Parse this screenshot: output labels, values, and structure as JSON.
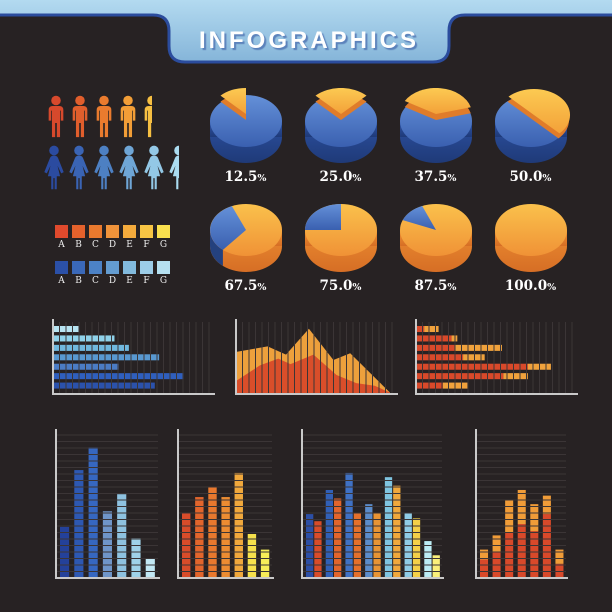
{
  "header": {
    "title": "INFOGRAPHICS",
    "banner_color": "#9ccbe8",
    "banner_light": "#b3daf0",
    "banner_dark": "#7fb0d6",
    "border_color": "#2b4c9d",
    "title_color": "#ffffff"
  },
  "background": "#272223",
  "axis_color": "#c9c9c9",
  "grid_color": "#3b3536",
  "chart_data": [
    {
      "id": "pictogram-male",
      "type": "pictogram",
      "icon": "man",
      "unit_count": 4.5,
      "colors": [
        "#d7492c",
        "#e15e2c",
        "#ea7b2e",
        "#f29e37",
        "#f6bf42"
      ],
      "last_unit_fraction": 0.5
    },
    {
      "id": "pictogram-female",
      "type": "pictogram",
      "icon": "woman",
      "unit_count": 5.5,
      "colors": [
        "#2b4ba0",
        "#3a64b4",
        "#4d80c3",
        "#6fa6d6",
        "#93c8e6",
        "#abdcf0"
      ],
      "last_unit_fraction": 0.5
    },
    {
      "id": "legend-warm",
      "type": "legend",
      "labels": [
        "A",
        "B",
        "C",
        "D",
        "E",
        "F",
        "G"
      ],
      "colors": [
        "#e04a2d",
        "#e5622c",
        "#ea7a2e",
        "#f0933a",
        "#f4ab3c",
        "#f7c544",
        "#fae04e"
      ]
    },
    {
      "id": "legend-cool",
      "type": "legend",
      "labels": [
        "A",
        "B",
        "C",
        "D",
        "E",
        "F",
        "G"
      ],
      "colors": [
        "#2b50a7",
        "#3a68b8",
        "#4c82c6",
        "#649cd0",
        "#82badd",
        "#9ccde8",
        "#b5e0f0"
      ]
    },
    {
      "id": "pie-percentages",
      "type": "pie",
      "labels": [
        "12.5%",
        "25.0%",
        "37.5%",
        "50.0%",
        "67.5%",
        "75.0%",
        "87.5%",
        "100.0%"
      ],
      "values": [
        12.5,
        25,
        37.5,
        50,
        67.5,
        75,
        87.5,
        100
      ],
      "slice_color": "#f6ac3c",
      "base_color": "#4a76c8"
    },
    {
      "id": "hbar-blue",
      "type": "bar",
      "orientation": "horizontal",
      "xlim": [
        0,
        100
      ],
      "values": [
        17,
        42,
        52,
        73,
        45,
        90,
        70
      ],
      "colors": [
        "#b7e4f2",
        "#8fd2ea",
        "#70b8de",
        "#5898d0",
        "#4b7cc4",
        "#2f5fbe",
        "#2b52ac"
      ]
    },
    {
      "id": "area-dual",
      "type": "area",
      "ylim": [
        0,
        100
      ],
      "series": [
        {
          "name": "back-orange",
          "color": "#eda03c",
          "points": [
            [
              0,
              62
            ],
            [
              0.2,
              70
            ],
            [
              0.32,
              58
            ],
            [
              0.47,
              96
            ],
            [
              0.63,
              50
            ],
            [
              0.74,
              60
            ],
            [
              1,
              2
            ]
          ]
        },
        {
          "name": "front-red",
          "color": "#d94e2a",
          "points": [
            [
              0,
              20
            ],
            [
              0.15,
              42
            ],
            [
              0.27,
              52
            ],
            [
              0.35,
              44
            ],
            [
              0.5,
              58
            ],
            [
              0.65,
              28
            ],
            [
              0.78,
              16
            ],
            [
              0.9,
              12
            ],
            [
              1,
              2
            ]
          ]
        }
      ]
    },
    {
      "id": "hbar-stacked",
      "type": "bar",
      "orientation": "horizontal",
      "stacked": true,
      "xlim": [
        0,
        100
      ],
      "series": [
        {
          "name": "red",
          "color": "#d8492a",
          "values": [
            5,
            24,
            26,
            32,
            77,
            60,
            18
          ]
        },
        {
          "name": "orange",
          "color": "#f0a23c",
          "values": [
            10,
            4,
            33,
            15,
            16,
            17,
            17
          ]
        }
      ]
    },
    {
      "id": "vbar-blue",
      "type": "bar",
      "orientation": "vertical",
      "ylim": [
        0,
        100
      ],
      "values": [
        36,
        76,
        92,
        47,
        59,
        28,
        14
      ],
      "colors": [
        "#24419a",
        "#2d58b2",
        "#3667c0",
        "#6f95c8",
        "#8ec2e0",
        "#9fd2e8",
        "#c2e8f4"
      ]
    },
    {
      "id": "vbar-orange",
      "type": "bar",
      "orientation": "vertical",
      "ylim": [
        0,
        100
      ],
      "values": [
        46,
        57,
        64,
        57,
        74,
        31,
        20
      ],
      "colors": [
        "#d84c2a",
        "#e2652c",
        "#e8782e",
        "#ec8c32",
        "#f0a83c",
        "#f6e14c",
        "#f8ee58"
      ]
    },
    {
      "id": "vbar-grouped",
      "type": "bar",
      "orientation": "vertical",
      "grouped": true,
      "ylim": [
        0,
        100
      ],
      "series": [
        {
          "name": "blue",
          "values": [
            45,
            62,
            74,
            52,
            71,
            46,
            26
          ],
          "colors": [
            "#2c4fa6",
            "#3160b6",
            "#3f71c4",
            "#5b8cca",
            "#7fc4e0",
            "#8fcce6",
            "#bcecf4"
          ]
        },
        {
          "name": "orange",
          "values": [
            40,
            56,
            46,
            46,
            65,
            42,
            16
          ],
          "colors": [
            "#d84c2a",
            "#e2652c",
            "#e4702c",
            "#e89434",
            "#f0a83c",
            "#f4d048",
            "#faf07a"
          ]
        }
      ]
    },
    {
      "id": "vbar-stacked",
      "type": "bar",
      "orientation": "vertical",
      "stacked": true,
      "ylim": [
        0,
        100
      ],
      "series": [
        {
          "name": "red",
          "color": "#d8492a",
          "values": [
            13,
            18,
            32,
            38,
            33,
            45,
            10
          ]
        },
        {
          "name": "orange",
          "color": "#f09c38",
          "values": [
            7,
            12,
            23,
            24,
            19,
            13,
            10
          ]
        }
      ]
    }
  ]
}
